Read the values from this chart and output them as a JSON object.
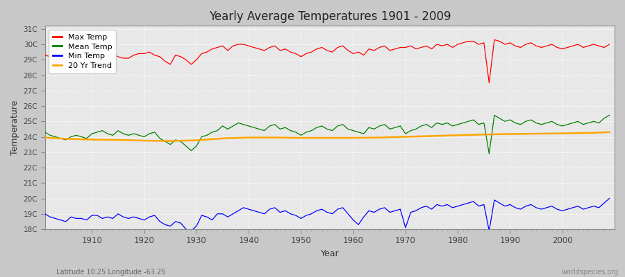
{
  "title": "Yearly Average Temperatures 1901 - 2009",
  "xlabel": "Year",
  "ylabel": "Temperature",
  "bottom_left_label": "Latitude 10.25 Longitude -63.25",
  "bottom_right_label": "worldspecies.org",
  "years": [
    1901,
    1902,
    1903,
    1904,
    1905,
    1906,
    1907,
    1908,
    1909,
    1910,
    1911,
    1912,
    1913,
    1914,
    1915,
    1916,
    1917,
    1918,
    1919,
    1920,
    1921,
    1922,
    1923,
    1924,
    1925,
    1926,
    1927,
    1928,
    1929,
    1930,
    1931,
    1932,
    1933,
    1934,
    1935,
    1936,
    1937,
    1938,
    1939,
    1940,
    1941,
    1942,
    1943,
    1944,
    1945,
    1946,
    1947,
    1948,
    1949,
    1950,
    1951,
    1952,
    1953,
    1954,
    1955,
    1956,
    1957,
    1958,
    1959,
    1960,
    1961,
    1962,
    1963,
    1964,
    1965,
    1966,
    1967,
    1968,
    1969,
    1970,
    1971,
    1972,
    1973,
    1974,
    1975,
    1976,
    1977,
    1978,
    1979,
    1980,
    1981,
    1982,
    1983,
    1984,
    1985,
    1986,
    1987,
    1988,
    1989,
    1990,
    1991,
    1992,
    1993,
    1994,
    1995,
    1996,
    1997,
    1998,
    1999,
    2000,
    2001,
    2002,
    2003,
    2004,
    2005,
    2006,
    2007,
    2008,
    2009
  ],
  "max_temp": [
    29.3,
    29.2,
    29.1,
    29.0,
    29.1,
    29.2,
    29.3,
    29.2,
    29.1,
    29.5,
    29.4,
    29.3,
    29.3,
    29.4,
    29.2,
    29.1,
    29.1,
    29.3,
    29.4,
    29.4,
    29.5,
    29.3,
    29.2,
    28.9,
    28.7,
    29.3,
    29.2,
    29.0,
    28.7,
    29.0,
    29.4,
    29.5,
    29.7,
    29.8,
    29.9,
    29.6,
    29.9,
    30.0,
    30.0,
    29.9,
    29.8,
    29.7,
    29.6,
    29.8,
    29.9,
    29.6,
    29.7,
    29.5,
    29.4,
    29.2,
    29.4,
    29.5,
    29.7,
    29.8,
    29.6,
    29.5,
    29.8,
    29.9,
    29.6,
    29.4,
    29.5,
    29.3,
    29.7,
    29.6,
    29.8,
    29.9,
    29.6,
    29.7,
    29.8,
    29.8,
    29.9,
    29.7,
    29.8,
    29.9,
    29.7,
    30.0,
    29.9,
    30.0,
    29.8,
    30.0,
    30.1,
    30.2,
    30.2,
    30.0,
    30.1,
    27.5,
    30.3,
    30.2,
    30.0,
    30.1,
    29.9,
    29.8,
    30.0,
    30.1,
    29.9,
    29.8,
    29.9,
    30.0,
    29.8,
    29.7,
    29.8,
    29.9,
    30.0,
    29.8,
    29.9,
    30.0,
    29.9,
    29.8,
    30.0
  ],
  "mean_temp": [
    24.3,
    24.1,
    24.0,
    23.9,
    23.8,
    24.0,
    24.1,
    24.0,
    23.9,
    24.2,
    24.3,
    24.4,
    24.2,
    24.1,
    24.4,
    24.2,
    24.1,
    24.2,
    24.1,
    24.0,
    24.2,
    24.3,
    23.9,
    23.7,
    23.5,
    23.8,
    23.7,
    23.4,
    23.1,
    23.4,
    24.0,
    24.1,
    24.3,
    24.4,
    24.7,
    24.5,
    24.7,
    24.9,
    24.8,
    24.7,
    24.6,
    24.5,
    24.4,
    24.7,
    24.8,
    24.5,
    24.6,
    24.4,
    24.3,
    24.1,
    24.3,
    24.4,
    24.6,
    24.7,
    24.5,
    24.4,
    24.7,
    24.8,
    24.5,
    24.4,
    24.3,
    24.2,
    24.6,
    24.5,
    24.7,
    24.8,
    24.5,
    24.6,
    24.7,
    24.2,
    24.4,
    24.5,
    24.7,
    24.8,
    24.6,
    24.9,
    24.8,
    24.9,
    24.7,
    24.8,
    24.9,
    25.0,
    25.1,
    24.8,
    24.9,
    22.9,
    25.4,
    25.2,
    25.0,
    25.1,
    24.9,
    24.8,
    25.0,
    25.1,
    24.9,
    24.8,
    24.9,
    25.0,
    24.8,
    24.7,
    24.8,
    24.9,
    25.0,
    24.8,
    24.9,
    25.0,
    24.9,
    25.2,
    25.4
  ],
  "min_temp": [
    19.0,
    18.8,
    18.7,
    18.6,
    18.5,
    18.8,
    18.7,
    18.7,
    18.6,
    18.9,
    18.9,
    18.7,
    18.8,
    18.7,
    19.0,
    18.8,
    18.7,
    18.8,
    18.7,
    18.6,
    18.8,
    18.9,
    18.5,
    18.3,
    18.2,
    18.5,
    18.4,
    18.0,
    17.9,
    18.2,
    18.9,
    18.8,
    18.6,
    19.0,
    19.0,
    18.8,
    19.0,
    19.2,
    19.4,
    19.3,
    19.2,
    19.1,
    19.0,
    19.3,
    19.4,
    19.1,
    19.2,
    19.0,
    18.9,
    18.7,
    18.9,
    19.0,
    19.2,
    19.3,
    19.1,
    19.0,
    19.3,
    19.4,
    19.0,
    18.6,
    18.3,
    18.8,
    19.2,
    19.1,
    19.3,
    19.4,
    19.1,
    19.2,
    19.3,
    18.1,
    19.1,
    19.2,
    19.4,
    19.5,
    19.3,
    19.6,
    19.5,
    19.6,
    19.4,
    19.5,
    19.6,
    19.7,
    19.8,
    19.5,
    19.6,
    17.9,
    19.9,
    19.7,
    19.5,
    19.6,
    19.4,
    19.3,
    19.5,
    19.6,
    19.4,
    19.3,
    19.4,
    19.5,
    19.3,
    19.2,
    19.3,
    19.4,
    19.5,
    19.3,
    19.4,
    19.5,
    19.4,
    19.7,
    20.0
  ],
  "trend_x": [
    1901,
    1905,
    1910,
    1915,
    1920,
    1925,
    1930,
    1935,
    1940,
    1945,
    1950,
    1955,
    1960,
    1965,
    1970,
    1975,
    1980,
    1985,
    1990,
    1995,
    2000,
    2005,
    2009
  ],
  "trend_y": [
    23.95,
    23.87,
    23.82,
    23.8,
    23.75,
    23.73,
    23.77,
    23.9,
    23.95,
    23.95,
    23.93,
    23.93,
    23.93,
    23.95,
    24.0,
    24.05,
    24.1,
    24.15,
    24.18,
    24.2,
    24.22,
    24.25,
    24.3
  ],
  "max_color": "#ff0000",
  "mean_color": "#008000",
  "min_color": "#0000ff",
  "trend_color": "#ffa500",
  "ylim_min": 18,
  "ylim_max": 31,
  "yticks": [
    18,
    19,
    20,
    21,
    22,
    23,
    24,
    25,
    26,
    27,
    28,
    29,
    30,
    31
  ],
  "ytick_labels": [
    "18C",
    "19C",
    "20C",
    "21C",
    "22C",
    "23C",
    "24C",
    "25C",
    "26C",
    "27C",
    "28C",
    "29C",
    "30C",
    "31C"
  ],
  "xticks": [
    1910,
    1920,
    1930,
    1940,
    1950,
    1960,
    1970,
    1980,
    1990,
    2000
  ],
  "legend_labels": [
    "Max Temp",
    "Mean Temp",
    "Min Temp",
    "20 Yr Trend"
  ],
  "legend_colors": [
    "#ff0000",
    "#008000",
    "#0000ff",
    "#ffa500"
  ]
}
